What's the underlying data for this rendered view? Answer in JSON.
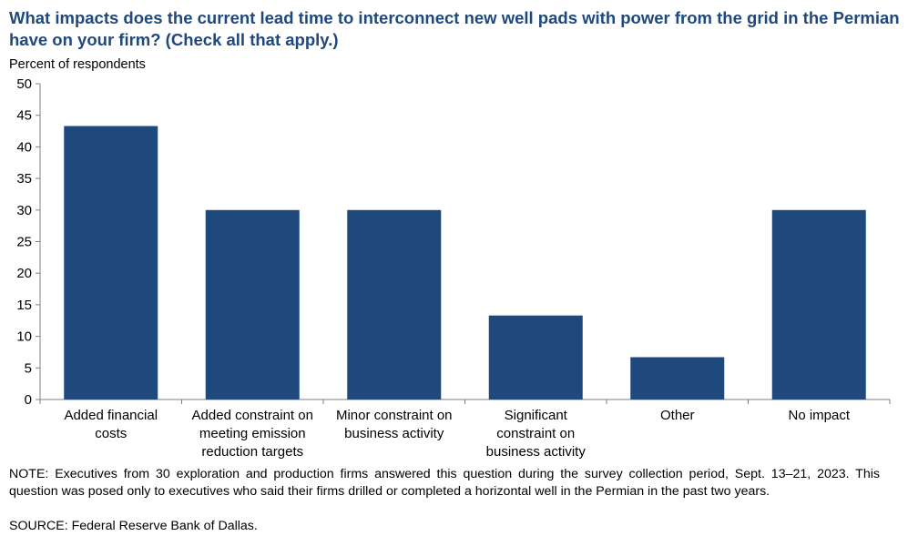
{
  "chart_data": {
    "type": "bar",
    "title": "What impacts does the current lead time to interconnect new well pads with power from the grid in the Permian have on your firm? (Check all that apply.)",
    "ylabel": "Percent of respondents",
    "xlabel": "",
    "ylim": [
      0,
      50
    ],
    "yticks": [
      0,
      5,
      10,
      15,
      20,
      25,
      30,
      35,
      40,
      45,
      50
    ],
    "categories": [
      [
        "Added financial",
        "costs"
      ],
      [
        "Added constraint on",
        "meeting emission",
        "reduction targets"
      ],
      [
        "Minor constraint on",
        "business activity"
      ],
      [
        "Significant",
        "constraint on",
        "business activity"
      ],
      [
        "Other"
      ],
      [
        "No impact"
      ]
    ],
    "values": [
      43.3,
      30.0,
      30.0,
      13.3,
      6.7,
      30.0
    ],
    "bar_color": "#1f497d",
    "grid": false
  },
  "note": "NOTE: Executives from 30 exploration and production firms answered this question during the survey collection period, Sept. 13–21, 2023. This question was posed only to executives who said their firms drilled or completed a horizontal well in the Permian in the past two years.",
  "source": "SOURCE: Federal Reserve Bank of Dallas."
}
